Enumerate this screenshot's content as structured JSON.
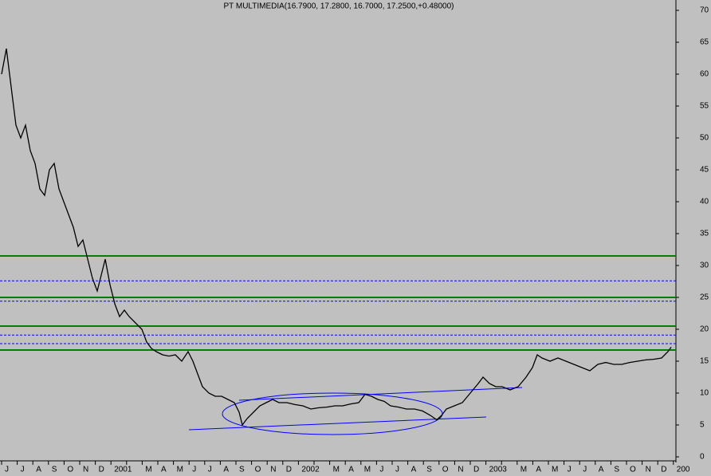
{
  "chart_data": {
    "type": "line",
    "title": "PT MULTIMEDIA(16.7900, 17.2800, 16.7000, 17.2500,+0.48000)",
    "color": "#000000",
    "xlim": [
      0,
      848
    ],
    "month_labels": [
      "J",
      "J",
      "A",
      "S",
      "O",
      "N",
      "D",
      "2001",
      null,
      "M",
      "A",
      "M",
      "J",
      "J",
      "A",
      "S",
      "O",
      "N",
      "D",
      "2002",
      null,
      "M",
      "A",
      "M",
      "J",
      "J",
      "A",
      "S",
      "O",
      "N",
      "D",
      "2003",
      null,
      "M",
      "A",
      "M",
      "J",
      "J",
      "A",
      "S",
      "O",
      "N",
      "D",
      "200"
    ],
    "x": [
      2,
      8,
      14,
      20,
      26,
      32,
      38,
      44,
      50,
      56,
      62,
      68,
      74,
      80,
      86,
      92,
      98,
      104,
      110,
      116,
      122,
      128,
      132,
      138,
      144,
      150,
      156,
      162,
      170,
      178,
      184,
      190,
      196,
      204,
      212,
      220,
      228,
      236,
      242,
      248,
      254,
      262,
      270,
      278,
      286,
      294,
      300,
      304,
      310,
      318,
      326,
      334,
      342,
      350,
      360,
      370,
      380,
      390,
      400,
      410,
      420,
      430,
      440,
      450,
      458,
      466,
      474,
      482,
      490,
      500,
      510,
      520,
      530,
      540,
      548,
      554,
      560,
      570,
      580,
      590,
      600,
      606,
      614,
      622,
      630,
      640,
      650,
      660,
      668,
      674,
      680,
      690,
      700,
      710,
      720,
      730,
      740,
      750,
      760,
      770,
      780,
      790,
      800,
      810,
      820,
      830,
      838,
      842
    ],
    "values": [
      60,
      64,
      58,
      52,
      50,
      52,
      48,
      46,
      42,
      41,
      45,
      46,
      42,
      40,
      38,
      36,
      33,
      34,
      31,
      28,
      26,
      29,
      31,
      27,
      24,
      22,
      23,
      22,
      21,
      20,
      18,
      17,
      16.5,
      16,
      15.8,
      16,
      15,
      16.5,
      15,
      13,
      11,
      10,
      9.5,
      9.5,
      9,
      8.5,
      7,
      5,
      6,
      7,
      8,
      8.5,
      9,
      8.5,
      8.5,
      8.2,
      8,
      7.5,
      7.7,
      7.8,
      8,
      8,
      8.3,
      8.5,
      9.8,
      9.5,
      9,
      8.7,
      8,
      7.8,
      7.5,
      7.5,
      7.2,
      6.5,
      5.8,
      6.5,
      7.5,
      8,
      8.5,
      10,
      11.5,
      12.5,
      11.5,
      11,
      11,
      10.5,
      11,
      12.5,
      14,
      16,
      15.5,
      15,
      15.5,
      15,
      14.5,
      14,
      13.5,
      14.5,
      14.8,
      14.5,
      14.5,
      14.8,
      15,
      15.2,
      15.3,
      15.5,
      16.5,
      17.2
    ],
    "support_lines": [
      31.5,
      25,
      20.5,
      16.75
    ],
    "support_color": "#008000",
    "dashed_lines": [
      27.6,
      24.4,
      19.1,
      17.75
    ],
    "dashed_color": "#0000ff",
    "ylim": [
      0,
      70
    ],
    "yticks": [
      0,
      5,
      10,
      15,
      20,
      25,
      30,
      35,
      40,
      45,
      50,
      55,
      60,
      65,
      70
    ]
  }
}
